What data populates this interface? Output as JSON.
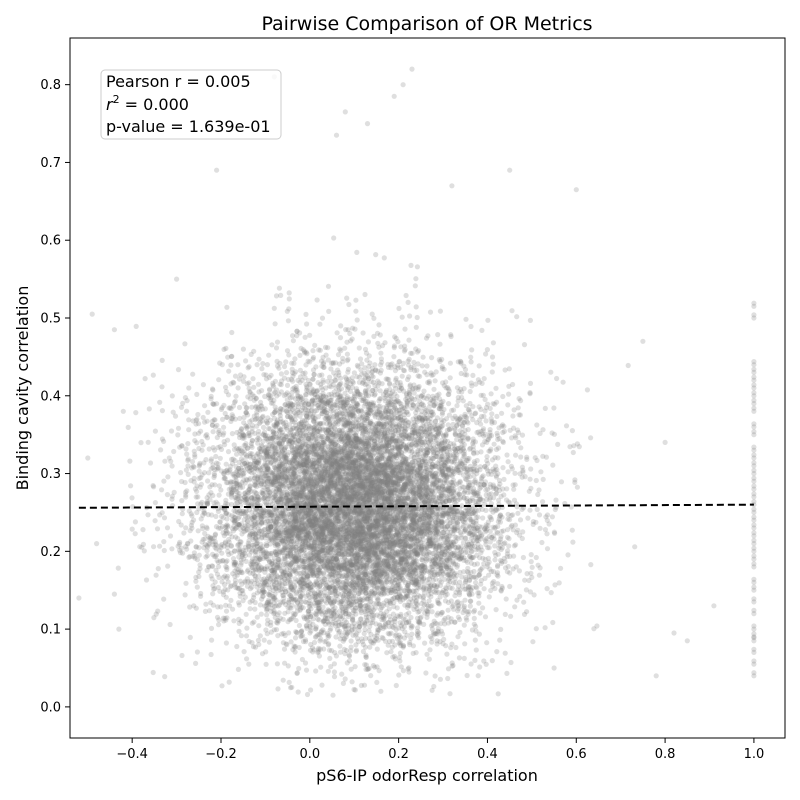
{
  "chart_data": {
    "type": "scatter",
    "title": "Pairwise Comparison of OR Metrics",
    "xlabel": "pS6-IP odorResp correlation",
    "ylabel": "Binding cavity correlation",
    "xlim": [
      -0.54,
      1.07
    ],
    "ylim": [
      -0.04,
      0.86
    ],
    "x_ticks": [
      -0.4,
      -0.2,
      0.0,
      0.2,
      0.4,
      0.6,
      0.8,
      1.0
    ],
    "x_tick_labels": [
      "−0.4",
      "−0.2",
      "0.0",
      "0.2",
      "0.4",
      "0.6",
      "0.8",
      "1.0"
    ],
    "y_ticks": [
      0.0,
      0.1,
      0.2,
      0.3,
      0.4,
      0.5,
      0.6,
      0.7,
      0.8
    ],
    "y_tick_labels": [
      "0.0",
      "0.1",
      "0.2",
      "0.3",
      "0.4",
      "0.5",
      "0.6",
      "0.7",
      "0.8"
    ],
    "grid": false,
    "point_color": "#808080",
    "point_alpha": 0.25,
    "cloud": {
      "x_mean": 0.1,
      "x_sd": 0.16,
      "y_mean": 0.26,
      "y_sd": 0.085,
      "n": 12000
    },
    "column_x": 1.0,
    "column_y_values": [
      0.04,
      0.055,
      0.07,
      0.085,
      0.09,
      0.1,
      0.12,
      0.135,
      0.15,
      0.16,
      0.18,
      0.19,
      0.2,
      0.21,
      0.22,
      0.23,
      0.24,
      0.25,
      0.26,
      0.27,
      0.28,
      0.29,
      0.3,
      0.31,
      0.32,
      0.33,
      0.35,
      0.36,
      0.38,
      0.39,
      0.4,
      0.41,
      0.42,
      0.43,
      0.44,
      0.5,
      0.515
    ],
    "outliers": [
      {
        "x": -0.52,
        "y": 0.14
      },
      {
        "x": -0.49,
        "y": 0.505
      },
      {
        "x": -0.5,
        "y": 0.32
      },
      {
        "x": -0.48,
        "y": 0.21
      },
      {
        "x": -0.44,
        "y": 0.485
      },
      {
        "x": -0.43,
        "y": 0.1
      },
      {
        "x": -0.42,
        "y": 0.38
      },
      {
        "x": -0.44,
        "y": 0.145
      },
      {
        "x": -0.08,
        "y": 0.81
      },
      {
        "x": 0.23,
        "y": 0.82
      },
      {
        "x": 0.08,
        "y": 0.765
      },
      {
        "x": 0.19,
        "y": 0.785
      },
      {
        "x": 0.21,
        "y": 0.8
      },
      {
        "x": 0.06,
        "y": 0.735
      },
      {
        "x": 0.13,
        "y": 0.75
      },
      {
        "x": -0.21,
        "y": 0.69
      },
      {
        "x": 0.82,
        "y": 0.095
      },
      {
        "x": 0.85,
        "y": 0.085
      },
      {
        "x": 0.91,
        "y": 0.13
      },
      {
        "x": 0.78,
        "y": 0.04
      },
      {
        "x": 0.8,
        "y": 0.34
      },
      {
        "x": 0.75,
        "y": 0.47
      },
      {
        "x": 0.6,
        "y": 0.665
      },
      {
        "x": 0.55,
        "y": 0.05
      },
      {
        "x": 0.16,
        "y": 0.02
      },
      {
        "x": -0.3,
        "y": 0.55
      },
      {
        "x": 0.45,
        "y": 0.69
      },
      {
        "x": 0.32,
        "y": 0.67
      }
    ],
    "regression": {
      "x_start": -0.52,
      "y_start": 0.256,
      "x_end": 1.0,
      "y_end": 0.26,
      "color": "#000000",
      "dash": "dashed"
    },
    "annotation": {
      "pearson": "Pearson r = 0.005",
      "r2_label": "r",
      "r2_superscript": "2",
      "r2_value": " = 0.000",
      "pvalue": "p-value = 1.639e-01",
      "placement": "top-left"
    }
  }
}
